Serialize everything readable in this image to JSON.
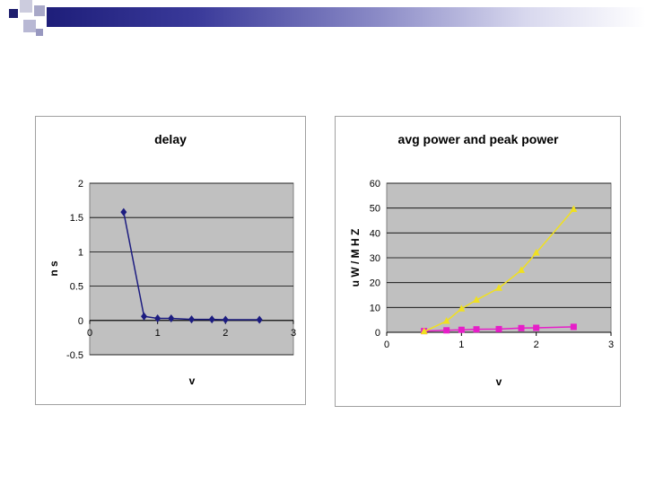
{
  "chart_data": [
    {
      "type": "line",
      "title": "delay",
      "xlabel": "v",
      "ylabel": "n s",
      "xlim": [
        0,
        3
      ],
      "ylim": [
        -0.5,
        2
      ],
      "xticks": [
        0,
        1,
        2,
        3
      ],
      "yticks": [
        -0.5,
        0,
        0.5,
        1,
        1.5,
        2
      ],
      "grid": true,
      "legend": "none",
      "colors": {
        "line": "#1c1c80",
        "plot_bg": "#c0c0c0"
      },
      "series": [
        {
          "name": "",
          "marker": "diamond",
          "x": [
            0.5,
            0.8,
            1.0,
            1.2,
            1.5,
            1.8,
            2.0,
            2.5
          ],
          "y": [
            1.58,
            0.06,
            0.03,
            0.03,
            0.015,
            0.015,
            0.01,
            0.01
          ]
        }
      ]
    },
    {
      "type": "line",
      "title": "avg power and peak power",
      "xlabel": "v",
      "ylabel": "u W / M H Z",
      "xlim": [
        0,
        3
      ],
      "ylim": [
        0,
        60
      ],
      "xticks": [
        0,
        1,
        2,
        3
      ],
      "yticks": [
        0,
        10,
        20,
        30,
        40,
        50,
        60
      ],
      "grid": true,
      "legend": "none",
      "colors": {
        "plot_bg": "#c0c0c0"
      },
      "series": [
        {
          "name": "",
          "marker": "square",
          "color": "#e61ec8",
          "x": [
            0.5,
            0.8,
            1.0,
            1.2,
            1.5,
            1.8,
            2.0,
            2.5
          ],
          "y": [
            0.5,
            0.8,
            1.0,
            1.2,
            1.3,
            1.7,
            1.8,
            2.2
          ]
        },
        {
          "name": "",
          "marker": "triangle",
          "color": "#f0e020",
          "x": [
            0.5,
            0.8,
            1.0,
            1.2,
            1.5,
            1.8,
            2.0,
            2.5
          ],
          "y": [
            0.3,
            4.5,
            9.5,
            13.0,
            17.8,
            25.0,
            32.0,
            49.5
          ]
        }
      ]
    }
  ]
}
